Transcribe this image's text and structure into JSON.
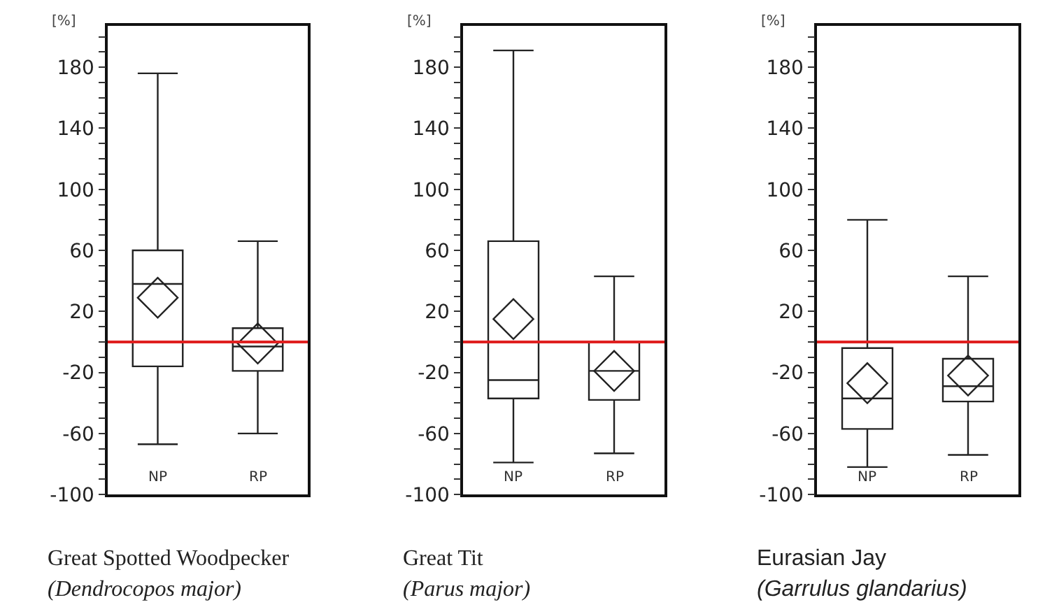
{
  "chart_data": [
    {
      "type": "box",
      "title": "Great Spotted Woodpecker",
      "subtitle": "(Dendrocopos major)",
      "ylabel": "[%]",
      "categories": [
        "NP",
        "RP"
      ],
      "ylim": [
        -100,
        207
      ],
      "yticks": [
        -100,
        {
          "value": -90,
          "label": null
        },
        {
          "value": -80,
          "label": null
        },
        {
          "value": -70,
          "label": null
        },
        -60,
        {
          "value": -50,
          "label": null
        },
        {
          "value": -40,
          "label": null
        },
        {
          "value": -30,
          "label": null
        },
        -20,
        {
          "value": -10,
          "label": null
        },
        {
          "value": 0,
          "label": null
        },
        {
          "value": 10,
          "label": null
        },
        20,
        {
          "value": 30,
          "label": null
        },
        {
          "value": 40,
          "label": null
        },
        {
          "value": 50,
          "label": null
        },
        60,
        {
          "value": 70,
          "label": null
        },
        {
          "value": 80,
          "label": null
        },
        {
          "value": 90,
          "label": null
        },
        100,
        {
          "value": 110,
          "label": null
        },
        {
          "value": 120,
          "label": null
        },
        {
          "value": 130,
          "label": null
        },
        140,
        {
          "value": 150,
          "label": null
        },
        {
          "value": 160,
          "label": null
        },
        {
          "value": 170,
          "label": null
        },
        180,
        {
          "value": 190,
          "label": null
        },
        {
          "value": 200,
          "label": null
        }
      ],
      "boxes": [
        {
          "low": -67,
          "q1": -16,
          "median": 38,
          "q3": 60,
          "high": 176,
          "mean": 29
        },
        {
          "low": -60,
          "q1": -19,
          "median": -3,
          "q3": 9,
          "high": 66,
          "mean": -1
        }
      ],
      "ref_lines": [
        {
          "axis": "y",
          "value": 0,
          "color": "#e02020"
        }
      ]
    },
    {
      "type": "box",
      "title": "Great Tit",
      "subtitle": "(Parus major)",
      "ylabel": "[%]",
      "categories": [
        "NP",
        "RP"
      ],
      "ylim": [
        -100,
        207
      ],
      "yticks": [
        -100,
        {
          "value": -90,
          "label": null
        },
        {
          "value": -80,
          "label": null
        },
        {
          "value": -70,
          "label": null
        },
        -60,
        {
          "value": -50,
          "label": null
        },
        {
          "value": -40,
          "label": null
        },
        {
          "value": -30,
          "label": null
        },
        -20,
        {
          "value": -10,
          "label": null
        },
        {
          "value": 0,
          "label": null
        },
        {
          "value": 10,
          "label": null
        },
        20,
        {
          "value": 30,
          "label": null
        },
        {
          "value": 40,
          "label": null
        },
        {
          "value": 50,
          "label": null
        },
        60,
        {
          "value": 70,
          "label": null
        },
        {
          "value": 80,
          "label": null
        },
        {
          "value": 90,
          "label": null
        },
        100,
        {
          "value": 110,
          "label": null
        },
        {
          "value": 120,
          "label": null
        },
        {
          "value": 130,
          "label": null
        },
        140,
        {
          "value": 150,
          "label": null
        },
        {
          "value": 160,
          "label": null
        },
        {
          "value": 170,
          "label": null
        },
        180,
        {
          "value": 190,
          "label": null
        },
        {
          "value": 200,
          "label": null
        }
      ],
      "boxes": [
        {
          "low": -79,
          "q1": -37,
          "median": -25,
          "q3": 66,
          "high": 191,
          "mean": 15
        },
        {
          "low": -73,
          "q1": -38,
          "median": -19,
          "q3": 0,
          "high": 43,
          "mean": -19
        }
      ],
      "ref_lines": [
        {
          "axis": "y",
          "value": 0,
          "color": "#e02020"
        }
      ]
    },
    {
      "type": "box",
      "title": "Eurasian Jay",
      "subtitle": "(Garrulus glandarius)",
      "ylabel": "[%]",
      "categories": [
        "NP",
        "RP"
      ],
      "ylim": [
        -100,
        207
      ],
      "yticks": [
        -100,
        {
          "value": -90,
          "label": null
        },
        {
          "value": -80,
          "label": null
        },
        {
          "value": -70,
          "label": null
        },
        -60,
        {
          "value": -50,
          "label": null
        },
        {
          "value": -40,
          "label": null
        },
        {
          "value": -30,
          "label": null
        },
        -20,
        {
          "value": -10,
          "label": null
        },
        {
          "value": 0,
          "label": null
        },
        {
          "value": 10,
          "label": null
        },
        20,
        {
          "value": 30,
          "label": null
        },
        {
          "value": 40,
          "label": null
        },
        {
          "value": 50,
          "label": null
        },
        60,
        {
          "value": 70,
          "label": null
        },
        {
          "value": 80,
          "label": null
        },
        {
          "value": 90,
          "label": null
        },
        100,
        {
          "value": 110,
          "label": null
        },
        {
          "value": 120,
          "label": null
        },
        {
          "value": 130,
          "label": null
        },
        140,
        {
          "value": 150,
          "label": null
        },
        {
          "value": 160,
          "label": null
        },
        {
          "value": 170,
          "label": null
        },
        180,
        {
          "value": 190,
          "label": null
        },
        {
          "value": 200,
          "label": null
        }
      ],
      "boxes": [
        {
          "low": -82,
          "q1": -57,
          "median": -37,
          "q3": -4,
          "high": 80,
          "mean": -27
        },
        {
          "low": -74,
          "q1": -39,
          "median": -29,
          "q3": -11,
          "high": 43,
          "mean": -22
        }
      ],
      "ref_lines": [
        {
          "axis": "y",
          "value": 0,
          "color": "#e02020"
        }
      ]
    }
  ]
}
